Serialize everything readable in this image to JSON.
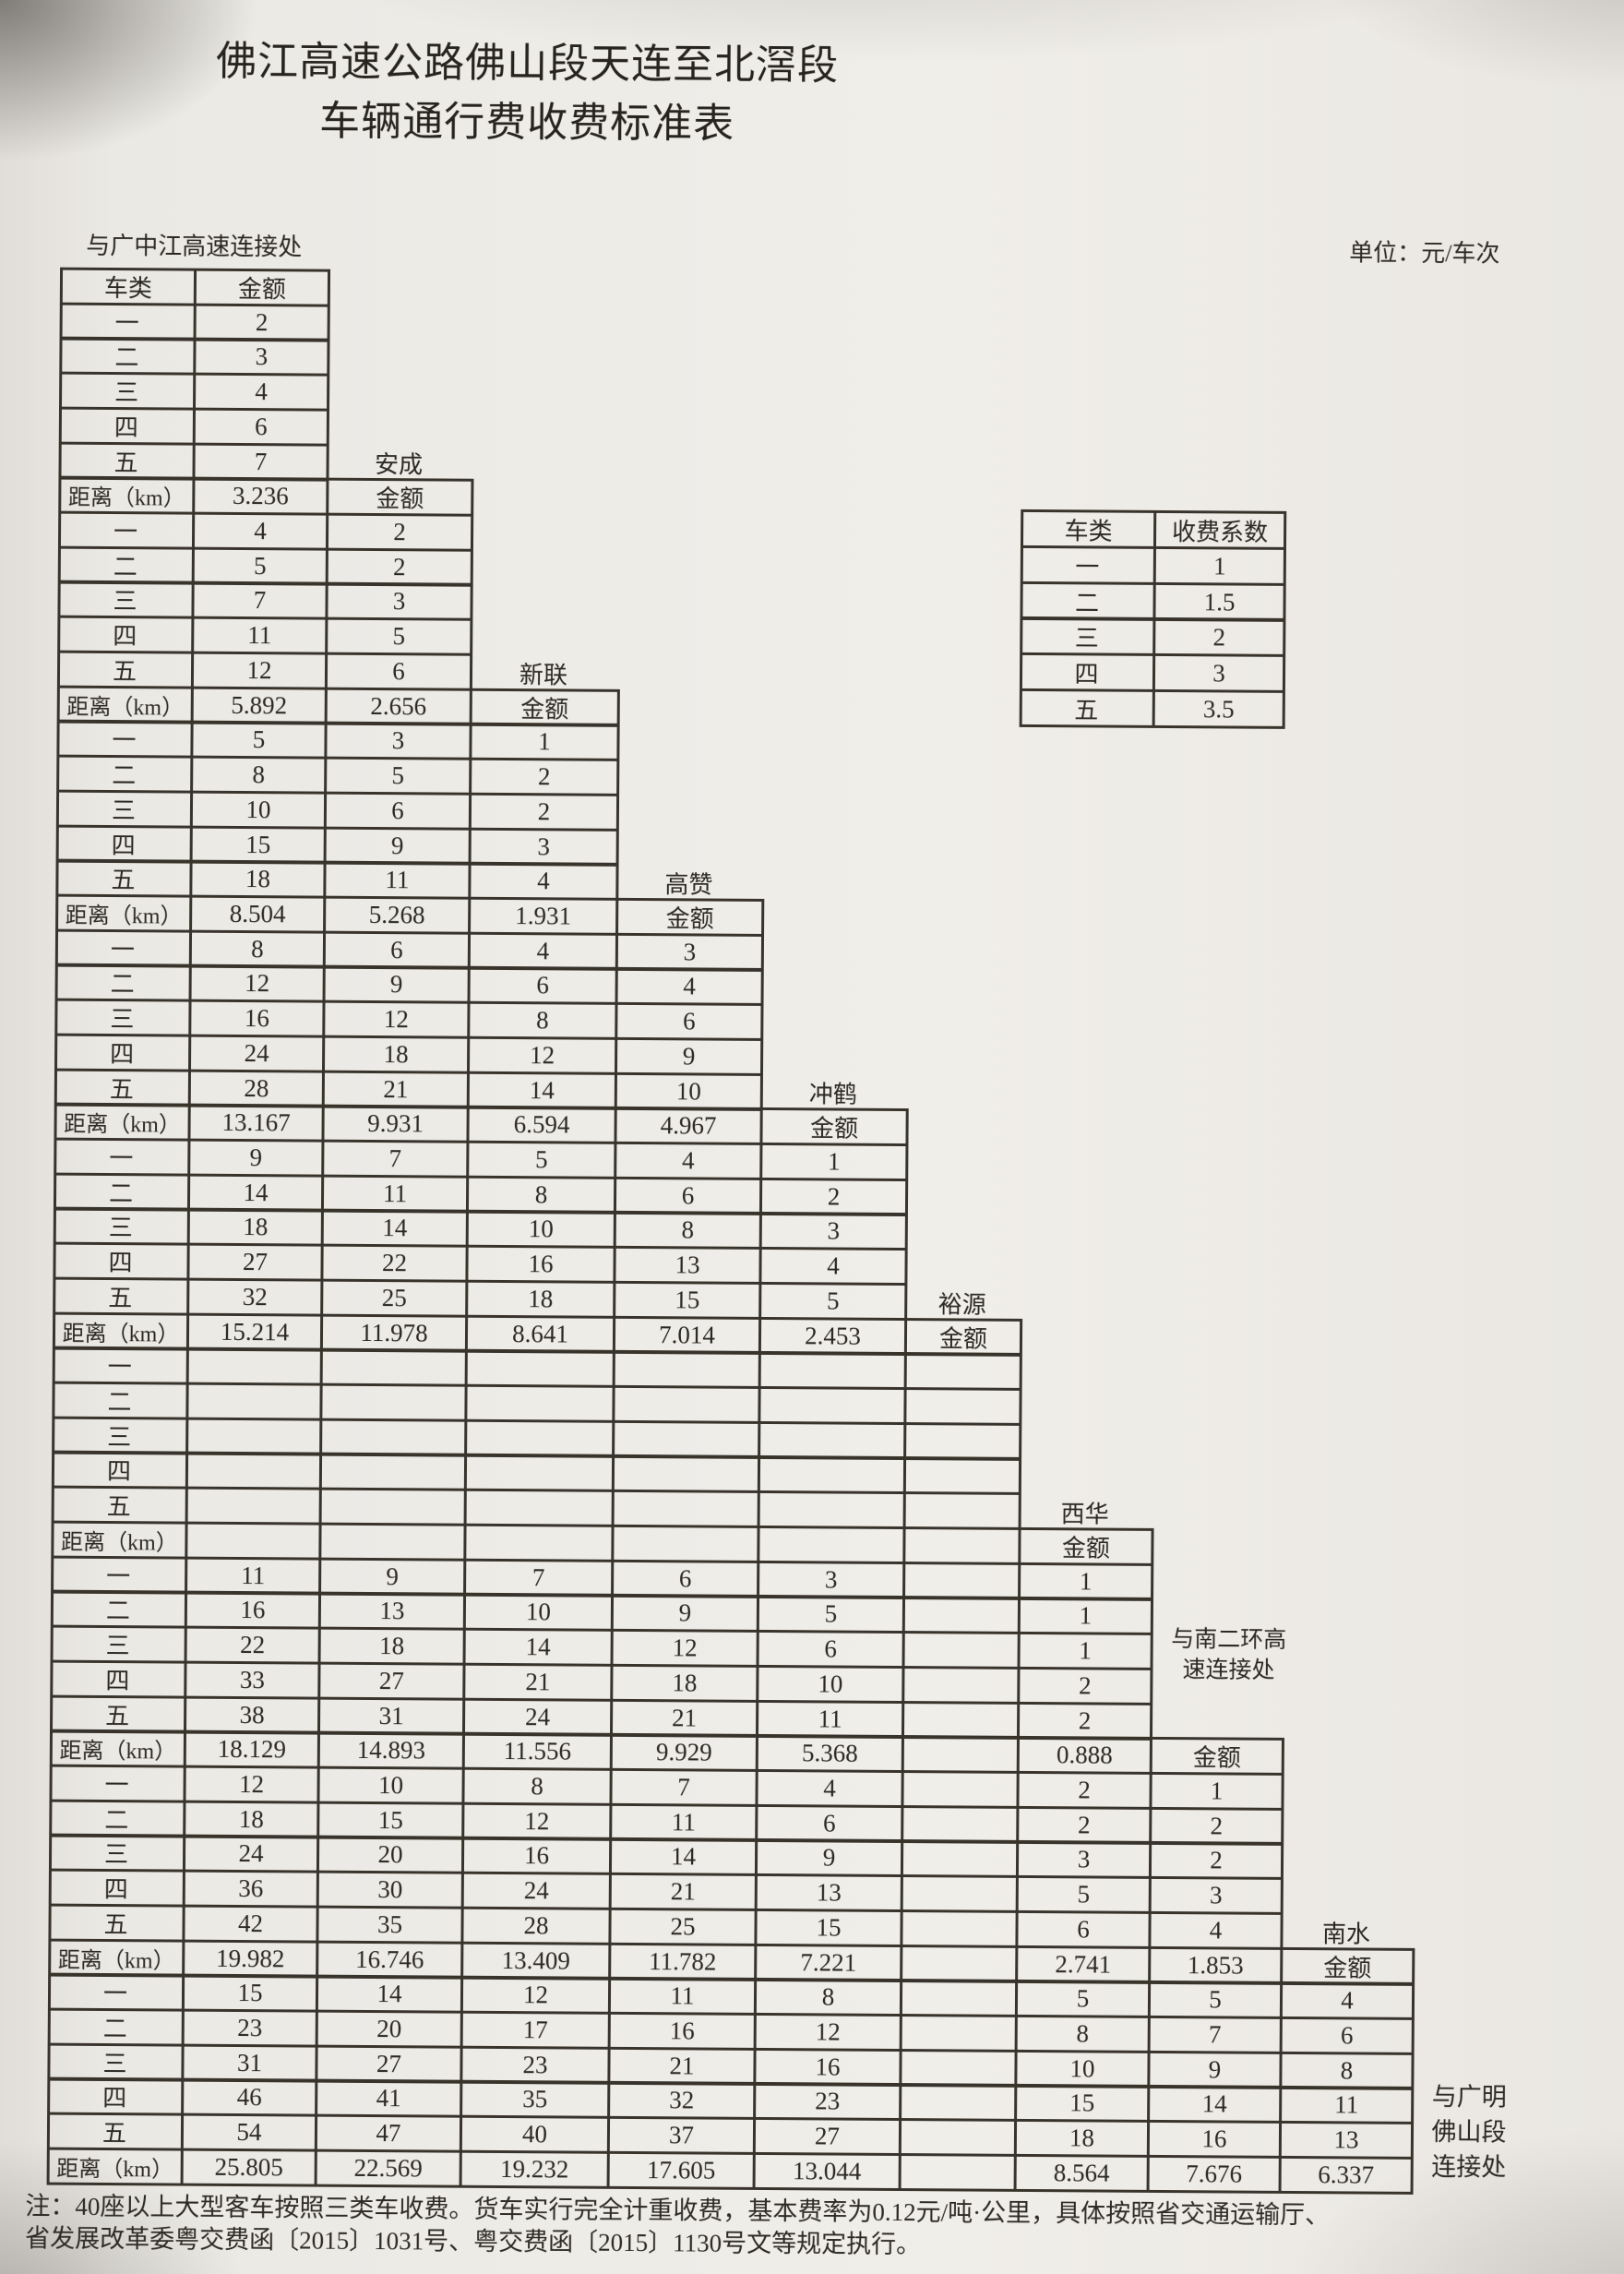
{
  "title": {
    "line1": "佛江高速公路佛山段天连至北滘段",
    "line2": "车辆通行费收费标准表"
  },
  "unit_label": "单位：元/车次",
  "main_table": {
    "start_label": "与广中江高速连接处",
    "class_header": "车类",
    "amount_header": "金额",
    "distance_label": "距离（km）",
    "class_labels": [
      "一",
      "二",
      "三",
      "四",
      "五"
    ],
    "blocks": [
      {
        "station": "",
        "rows": [
          [
            "2"
          ],
          [
            "3"
          ],
          [
            "4"
          ],
          [
            "6"
          ],
          [
            "7"
          ]
        ]
      },
      {
        "station": "安成",
        "distances": [
          "3.236"
        ],
        "rows": [
          [
            "4",
            "2"
          ],
          [
            "5",
            "2"
          ],
          [
            "7",
            "3"
          ],
          [
            "11",
            "5"
          ],
          [
            "12",
            "6"
          ]
        ]
      },
      {
        "station": "新联",
        "distances": [
          "5.892",
          "2.656"
        ],
        "rows": [
          [
            "5",
            "3",
            "1"
          ],
          [
            "8",
            "5",
            "2"
          ],
          [
            "10",
            "6",
            "2"
          ],
          [
            "15",
            "9",
            "3"
          ],
          [
            "18",
            "11",
            "4"
          ]
        ]
      },
      {
        "station": "高赞",
        "distances": [
          "8.504",
          "5.268",
          "1.931"
        ],
        "rows": [
          [
            "8",
            "6",
            "4",
            "3"
          ],
          [
            "12",
            "9",
            "6",
            "4"
          ],
          [
            "16",
            "12",
            "8",
            "6"
          ],
          [
            "24",
            "18",
            "12",
            "9"
          ],
          [
            "28",
            "21",
            "14",
            "10"
          ]
        ]
      },
      {
        "station": "冲鹤",
        "distances": [
          "13.167",
          "9.931",
          "6.594",
          "4.967"
        ],
        "rows": [
          [
            "9",
            "7",
            "5",
            "4",
            "1"
          ],
          [
            "14",
            "11",
            "8",
            "6",
            "2"
          ],
          [
            "18",
            "14",
            "10",
            "8",
            "3"
          ],
          [
            "27",
            "22",
            "16",
            "13",
            "4"
          ],
          [
            "32",
            "25",
            "18",
            "15",
            "5"
          ]
        ]
      },
      {
        "station": "裕源",
        "distances": [
          "15.214",
          "11.978",
          "8.641",
          "7.014",
          "2.453"
        ],
        "rows": [
          [
            "",
            "",
            "",
            "",
            "",
            ""
          ],
          [
            "",
            "",
            "",
            "",
            "",
            ""
          ],
          [
            "",
            "",
            "",
            "",
            "",
            ""
          ],
          [
            "",
            "",
            "",
            "",
            "",
            ""
          ],
          [
            "",
            "",
            "",
            "",
            "",
            ""
          ]
        ]
      },
      {
        "station": "西华",
        "distances": [
          "",
          "",
          "",
          "",
          "",
          ""
        ],
        "rows": [
          [
            "11",
            "9",
            "7",
            "6",
            "3",
            "",
            "1"
          ],
          [
            "16",
            "13",
            "10",
            "9",
            "5",
            "",
            "1"
          ],
          [
            "22",
            "18",
            "14",
            "12",
            "6",
            "",
            "1"
          ],
          [
            "33",
            "27",
            "21",
            "18",
            "10",
            "",
            "2"
          ],
          [
            "38",
            "31",
            "24",
            "21",
            "11",
            "",
            "2"
          ]
        ]
      },
      {
        "station": "",
        "distances": [
          "18.129",
          "14.893",
          "11.556",
          "9.929",
          "5.368",
          "",
          "0.888"
        ],
        "rows": [
          [
            "12",
            "10",
            "8",
            "7",
            "4",
            "",
            "2",
            "1"
          ],
          [
            "18",
            "15",
            "12",
            "11",
            "6",
            "",
            "2",
            "2"
          ],
          [
            "24",
            "20",
            "16",
            "14",
            "9",
            "",
            "3",
            "2"
          ],
          [
            "36",
            "30",
            "24",
            "21",
            "13",
            "",
            "5",
            "3"
          ],
          [
            "42",
            "35",
            "28",
            "25",
            "15",
            "",
            "6",
            "4"
          ]
        ]
      },
      {
        "station": "南水",
        "distances": [
          "19.982",
          "16.746",
          "13.409",
          "11.782",
          "7.221",
          "",
          "2.741",
          "1.853"
        ],
        "rows": [
          [
            "15",
            "14",
            "12",
            "11",
            "8",
            "",
            "5",
            "5",
            "4"
          ],
          [
            "23",
            "20",
            "17",
            "16",
            "12",
            "",
            "8",
            "7",
            "6"
          ],
          [
            "31",
            "27",
            "23",
            "21",
            "16",
            "",
            "10",
            "9",
            "8"
          ],
          [
            "46",
            "41",
            "35",
            "32",
            "23",
            "",
            "15",
            "14",
            "11"
          ],
          [
            "54",
            "47",
            "40",
            "37",
            "27",
            "",
            "18",
            "16",
            "13"
          ]
        ]
      }
    ],
    "final_distances": [
      "25.805",
      "22.569",
      "19.232",
      "17.605",
      "13.044",
      "",
      "8.564",
      "7.676",
      "6.337"
    ]
  },
  "coefficient_table": {
    "class_header": "车类",
    "coef_header": "收费系数",
    "rows": [
      [
        "一",
        "1"
      ],
      [
        "二",
        "1.5"
      ],
      [
        "三",
        "2"
      ],
      [
        "四",
        "3"
      ],
      [
        "五",
        "3.5"
      ]
    ]
  },
  "annotations": {
    "south_ring_line1": "与南二环高",
    "south_ring_line2": "速连接处",
    "guangming_line1": "与广明",
    "guangming_line2": "佛山段",
    "guangming_line3": "连接处"
  },
  "note_line1": "注：40座以上大型客车按照三类车收费。货车实行完全计重收费，基本费率为0.12元/吨·公里，具体按照省交通运输厅、",
  "note_line2": "省发展改革委粤交费函〔2015〕1031号、粤交费函〔2015〕1130号文等规定执行。"
}
